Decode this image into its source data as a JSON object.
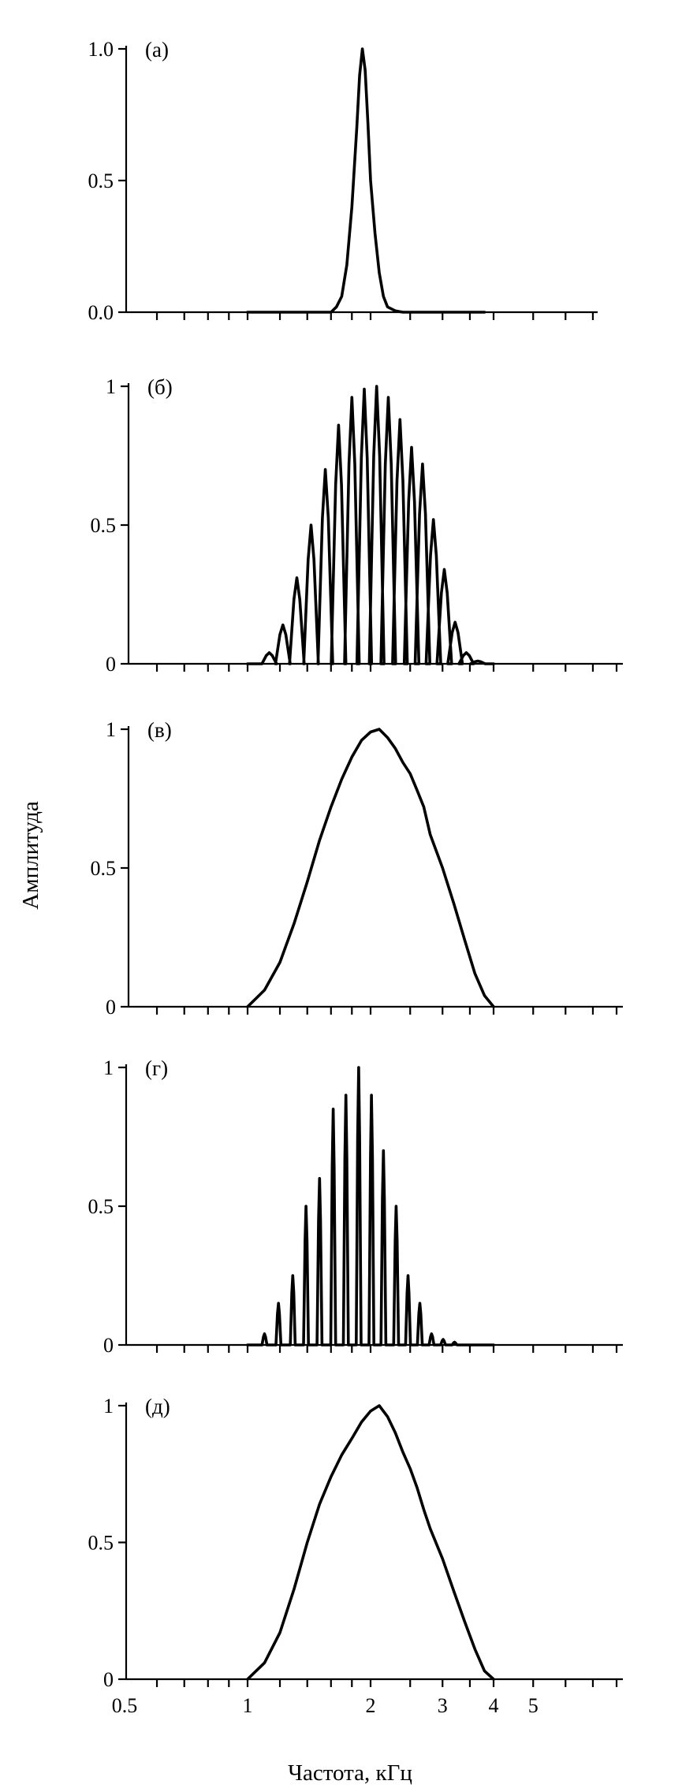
{
  "chart_data": [
    {
      "type": "line",
      "panel_label": "(а)",
      "xscale": "log",
      "xlim": [
        0.5,
        8
      ],
      "ylim": [
        0,
        1
      ],
      "yticks": [
        "0.0",
        "0.5",
        "1.0"
      ],
      "ytick_values": [
        0,
        0.5,
        1
      ],
      "xticks_shown_labels": false,
      "grid": false,
      "series": [
        {
          "x": [
            1.0,
            1.6,
            1.65,
            1.7,
            1.75,
            1.8,
            1.85,
            1.88,
            1.91,
            1.94,
            1.97,
            2.0,
            2.05,
            2.1,
            2.15,
            2.2,
            2.3,
            2.4,
            3.8
          ],
          "values": [
            0,
            0,
            0.02,
            0.06,
            0.18,
            0.4,
            0.7,
            0.9,
            1.0,
            0.92,
            0.72,
            0.5,
            0.3,
            0.15,
            0.06,
            0.02,
            0.005,
            0,
            0
          ]
        }
      ]
    },
    {
      "type": "line",
      "panel_label": "(б)",
      "xscale": "log",
      "xlim": [
        0.5,
        8
      ],
      "ylim": [
        0,
        1
      ],
      "yticks": [
        "0",
        "0.5",
        "1"
      ],
      "ytick_values": [
        0,
        0.5,
        1
      ],
      "grid": false,
      "series": [
        {
          "x": [
            1.0,
            4.0
          ],
          "peaks_x": [
            1.13,
            1.22,
            1.32,
            1.43,
            1.55,
            1.67,
            1.8,
            1.93,
            2.07,
            2.21,
            2.36,
            2.52,
            2.68,
            2.85,
            3.03,
            3.22,
            3.43,
            3.66
          ],
          "peaks_y": [
            0.04,
            0.14,
            0.31,
            0.5,
            0.7,
            0.86,
            0.96,
            0.99,
            1.0,
            0.96,
            0.88,
            0.78,
            0.72,
            0.52,
            0.34,
            0.15,
            0.04,
            0.01
          ]
        }
      ]
    },
    {
      "type": "line",
      "panel_label": "(в)",
      "xscale": "log",
      "xlim": [
        0.5,
        8
      ],
      "ylim": [
        0,
        1
      ],
      "yticks": [
        "0",
        "0.5",
        "1"
      ],
      "ytick_values": [
        0,
        0.5,
        1
      ],
      "grid": false,
      "series": [
        {
          "x": [
            1.0,
            1.1,
            1.2,
            1.3,
            1.4,
            1.5,
            1.6,
            1.7,
            1.8,
            1.9,
            2.0,
            2.1,
            2.2,
            2.3,
            2.4,
            2.5,
            2.6,
            2.7,
            2.8,
            3.0,
            3.2,
            3.4,
            3.6,
            3.8,
            4.0
          ],
          "values": [
            0,
            0.06,
            0.16,
            0.3,
            0.45,
            0.6,
            0.72,
            0.82,
            0.9,
            0.96,
            0.99,
            1.0,
            0.97,
            0.93,
            0.88,
            0.84,
            0.78,
            0.72,
            0.62,
            0.5,
            0.37,
            0.24,
            0.12,
            0.04,
            0
          ]
        }
      ]
    },
    {
      "type": "line",
      "panel_label": "(г)",
      "xscale": "log",
      "xlim": [
        0.5,
        8
      ],
      "ylim": [
        0,
        1
      ],
      "yticks": [
        "0",
        "0.5",
        "1"
      ],
      "ytick_values": [
        0,
        0.5,
        1
      ],
      "grid": false,
      "series": [
        {
          "x": [
            1.0,
            4.0
          ],
          "peaks_x": [
            1.1,
            1.19,
            1.29,
            1.39,
            1.5,
            1.62,
            1.74,
            1.87,
            2.01,
            2.15,
            2.31,
            2.47,
            2.64,
            2.82,
            3.01,
            3.21,
            3.42,
            3.64
          ],
          "peaks_y": [
            0.04,
            0.15,
            0.25,
            0.5,
            0.6,
            0.85,
            0.9,
            1.0,
            0.9,
            0.7,
            0.5,
            0.25,
            0.15,
            0.04,
            0.02,
            0.01,
            0.0,
            0.0
          ]
        }
      ]
    },
    {
      "type": "line",
      "panel_label": "(д)",
      "xscale": "log",
      "xlim": [
        0.5,
        8
      ],
      "ylim": [
        0,
        1
      ],
      "yticks": [
        "0",
        "0.5",
        "1"
      ],
      "ytick_values": [
        0,
        0.5,
        1
      ],
      "xticks": [
        "0.5",
        "1",
        "2",
        "3",
        "4",
        "5"
      ],
      "xtick_values": [
        0.5,
        1,
        2,
        3,
        4,
        5
      ],
      "grid": false,
      "series": [
        {
          "x": [
            1.0,
            1.1,
            1.2,
            1.3,
            1.4,
            1.5,
            1.6,
            1.7,
            1.8,
            1.9,
            2.0,
            2.1,
            2.2,
            2.3,
            2.4,
            2.5,
            2.6,
            2.7,
            2.8,
            3.0,
            3.2,
            3.4,
            3.6,
            3.8,
            4.0
          ],
          "values": [
            0,
            0.06,
            0.17,
            0.33,
            0.5,
            0.64,
            0.74,
            0.82,
            0.88,
            0.94,
            0.98,
            1.0,
            0.96,
            0.9,
            0.83,
            0.77,
            0.7,
            0.62,
            0.55,
            0.44,
            0.32,
            0.21,
            0.11,
            0.03,
            0
          ]
        }
      ]
    }
  ],
  "ylabel": "Амплитуда",
  "xlabel": "Частота, кГц"
}
